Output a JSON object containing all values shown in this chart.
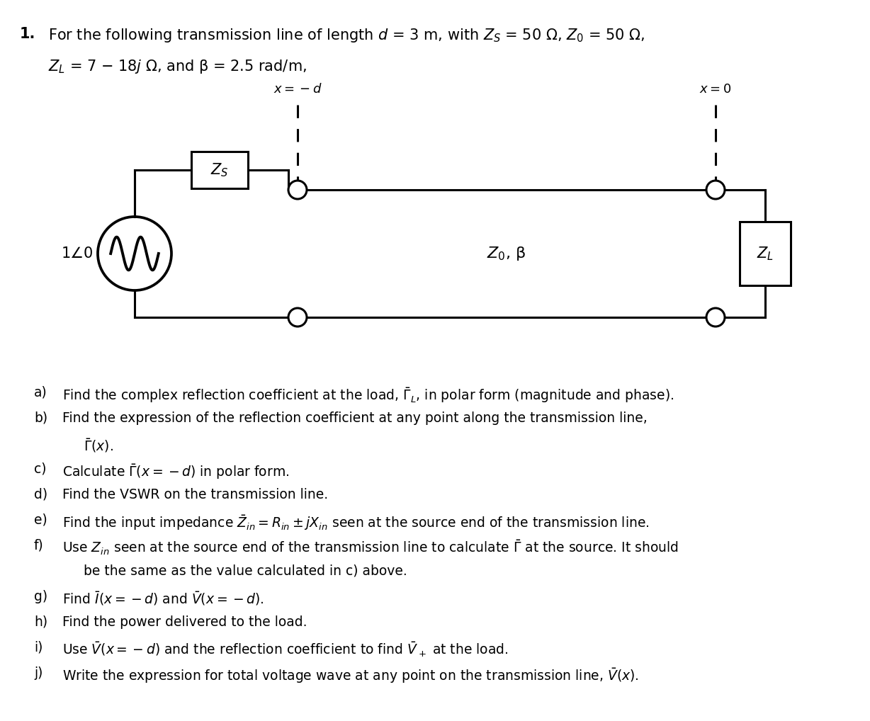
{
  "title_number": "1.",
  "title_line1": "For the following transmission line of length $d$ = 3 m, with $Z_S$ = 50 Ω, $Z_0$ = 50 Ω,",
  "title_line2": "$Z_L$ = 7 − 18$j$ Ω, and β = 2.5 rad/m,",
  "label_x_neg_d": "$x = -d$",
  "label_x_0": "$x = 0$",
  "label_Zs": "$Z_S$",
  "label_Z0_beta": "$Z_0$, β",
  "label_ZL": "$Z_L$",
  "label_source": "1∠0",
  "bg_color": "#ffffff",
  "text_color": "#000000",
  "q_indent_a": "a)",
  "q_indent_b": "b)",
  "q_indent_c": "c)",
  "q_indent_d": "d)",
  "q_indent_e": "e)",
  "q_indent_f": "f)",
  "q_indent_g": "g)",
  "q_indent_h": "h)",
  "q_indent_i": "i)",
  "q_indent_j": "j)",
  "qa": "Find the complex reflection coefficient at the load, $\\bar{\\Gamma}_L$, in polar form (magnitude and phase).",
  "qb": "Find the expression of the reflection coefficient at any point along the transmission line,",
  "qb2": "$\\bar{\\Gamma}(x)$.",
  "qc": "Calculate $\\bar{\\Gamma}(x = -d)$ in polar form.",
  "qd": "Find the VSWR on the transmission line.",
  "qe": "Find the input impedance $\\bar{Z}_{in} = R_{in} \\pm jX_{in}$ seen at the source end of the transmission line.",
  "qf": "Use $Z_{in}$ seen at the source end of the transmission line to calculate $\\bar{\\Gamma}$ at the source. It should",
  "qf2": "be the same as the value calculated in c) above.",
  "qg": "Find $\\bar{I}(x = -d)$ and $\\bar{V}(x = -d)$.",
  "qh": "Find the power delivered to the load.",
  "qi": "Use $\\bar{V}(x = -d)$ and the reflection coefficient to find $\\bar{V}_+$ at the load.",
  "qj": "Write the expression for total voltage wave at any point on the transmission line, $\\bar{V}(x)$."
}
